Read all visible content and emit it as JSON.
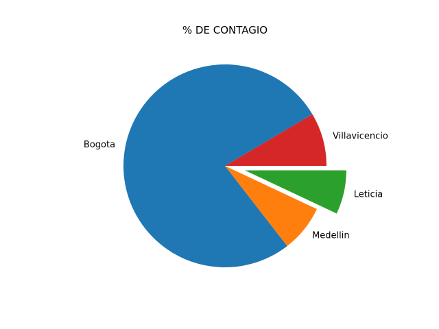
{
  "chart_data": {
    "type": "pie",
    "title": "% DE CONTAGIO",
    "start_angle_deg": 0,
    "direction": "counterclockwise",
    "slices": [
      {
        "label": "Villavicencio",
        "value": 8.5,
        "color": "#d62728",
        "explode": 0
      },
      {
        "label": "Bogota",
        "value": 77,
        "color": "#1f77b4",
        "explode": 0
      },
      {
        "label": "Medellin",
        "value": 7.5,
        "color": "#ff7f0e",
        "explode": 0
      },
      {
        "label": "Leticia",
        "value": 7,
        "color": "#2ca02c",
        "explode": 0.2
      }
    ]
  }
}
